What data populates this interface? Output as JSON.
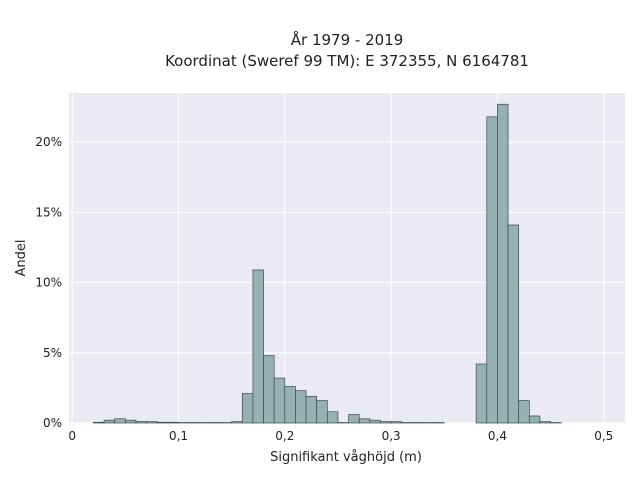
{
  "chart_data": {
    "type": "bar",
    "title_line1": "År 1979 - 2019",
    "title_line2": "Koordinat (Sweref 99 TM): E 372355, N 6164781",
    "xlabel": "Signifikant våghöjd (m)",
    "ylabel": "Andel",
    "xlim": [
      -0.003,
      0.52
    ],
    "ylim": [
      0,
      0.235
    ],
    "x_ticks": [
      0,
      0.1,
      0.2,
      0.3,
      0.4,
      0.5
    ],
    "x_tick_labels": [
      "0",
      "0,1",
      "0,2",
      "0,3",
      "0,4",
      "0,5"
    ],
    "y_ticks": [
      0,
      0.05,
      0.1,
      0.15,
      0.2
    ],
    "y_tick_labels": [
      "0%",
      "5%",
      "10%",
      "15%",
      "20%"
    ],
    "grid": true,
    "bin_width": 0.01,
    "bins_start": [
      0.02,
      0.03,
      0.04,
      0.05,
      0.06,
      0.07,
      0.08,
      0.09,
      0.1,
      0.11,
      0.12,
      0.13,
      0.14,
      0.15,
      0.16,
      0.17,
      0.18,
      0.19,
      0.2,
      0.21,
      0.22,
      0.23,
      0.24,
      0.25,
      0.26,
      0.27,
      0.28,
      0.29,
      0.3,
      0.31,
      0.32,
      0.33,
      0.34,
      0.35,
      0.36,
      0.37,
      0.38,
      0.39,
      0.4,
      0.41,
      0.42,
      0.43,
      0.44,
      0.45,
      0.46
    ],
    "values": [
      0.0005,
      0.002,
      0.003,
      0.002,
      0.001,
      0.001,
      0.0005,
      0.0005,
      0.0003,
      0.0003,
      0.0003,
      0.0003,
      0.0003,
      0.001,
      0.021,
      0.109,
      0.048,
      0.032,
      0.026,
      0.023,
      0.019,
      0.016,
      0.008,
      0.0003,
      0.006,
      0.003,
      0.002,
      0.001,
      0.001,
      0.0003,
      0.0003,
      0.0003,
      0.0003,
      0,
      0,
      0,
      0.042,
      0.218,
      0.227,
      0.141,
      0.016,
      0.005,
      0.001,
      0.0003,
      0
    ],
    "colors": {
      "bar_fill": "#95b2b0",
      "bar_stroke": "#3a4a48",
      "plot_bg": "#eaeaf2",
      "grid": "#ffffff"
    }
  }
}
